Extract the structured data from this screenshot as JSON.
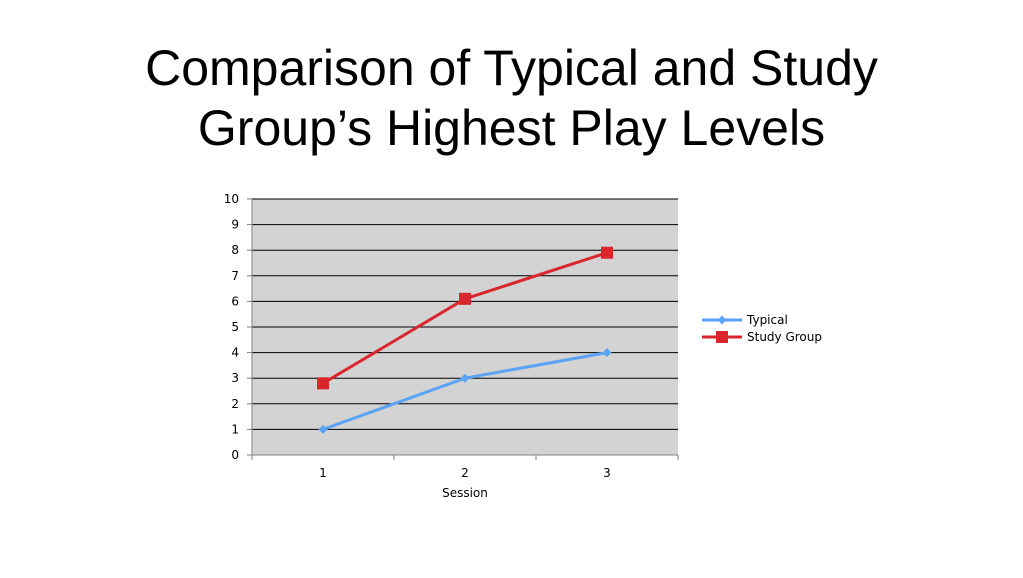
{
  "slide": {
    "title_line1": "Comparison of Typical and Study",
    "title_line2": "Group’s Highest Play Levels"
  },
  "chart_data": {
    "type": "line",
    "categories": [
      "1",
      "2",
      "3"
    ],
    "x": [
      1,
      2,
      3
    ],
    "xlabel": "Session",
    "ylabel": "",
    "ylim": [
      0,
      10
    ],
    "yticks": [
      0,
      1,
      2,
      3,
      4,
      5,
      6,
      7,
      8,
      9,
      10
    ],
    "grid": true,
    "plot_background": "#d3d3d3",
    "legend": "right",
    "series": [
      {
        "name": "Typical",
        "values": [
          1,
          3,
          4
        ],
        "color": "#5ba3f5",
        "marker": "diamond"
      },
      {
        "name": "Study Group",
        "values": [
          2.8,
          6.1,
          7.9
        ],
        "color": "#d9262c",
        "marker": "square"
      }
    ]
  }
}
